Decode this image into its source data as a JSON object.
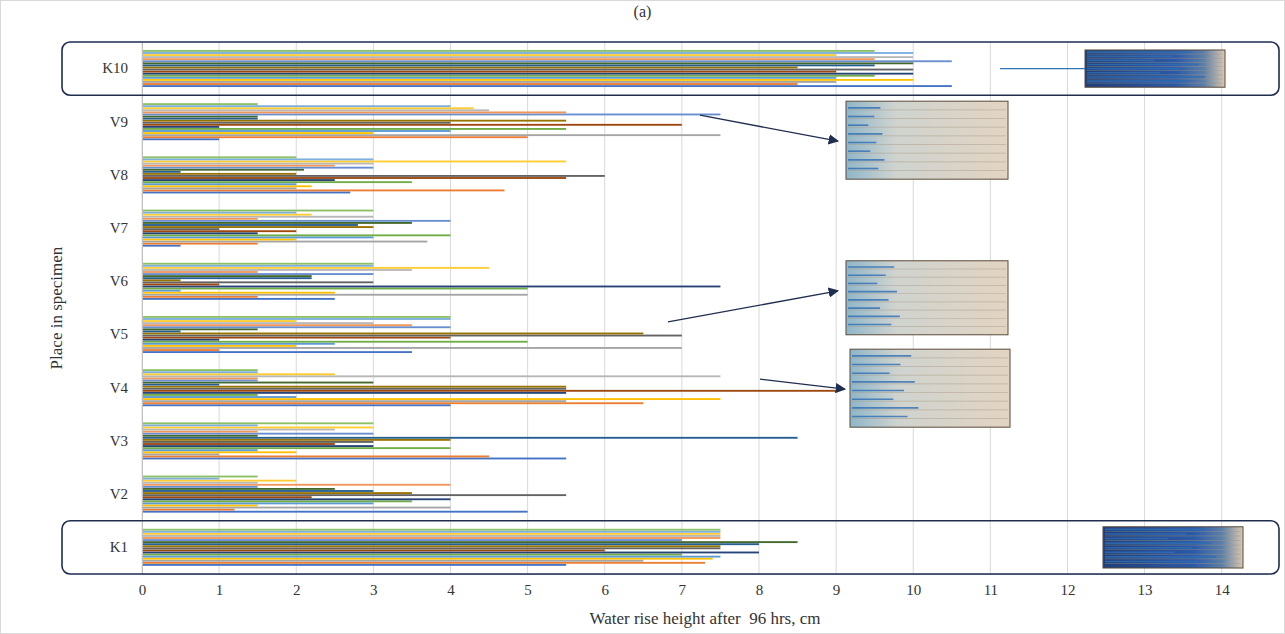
{
  "chart_data": {
    "type": "bar",
    "orientation": "horizontal",
    "title": "(a)",
    "xlabel": "Water rise height after  96 hrs, cm",
    "ylabel": "Place in specimen",
    "categories": [
      "K1",
      "V2",
      "V3",
      "V4",
      "V5",
      "V6",
      "V7",
      "V8",
      "V9",
      "K10"
    ],
    "xlim": [
      0,
      14.6
    ],
    "xticks": [
      0,
      1,
      2,
      3,
      4,
      5,
      6,
      7,
      8,
      9,
      10,
      11,
      12,
      13,
      14
    ],
    "grid": true,
    "series": [
      {
        "color": "#4472c4",
        "values": [
          5.5,
          5,
          5.5,
          4,
          3.5,
          2.5,
          0.5,
          2.7,
          1,
          10.5
        ]
      },
      {
        "color": "#ed7d31",
        "values": [
          7.3,
          1.2,
          4.5,
          6.5,
          1,
          1.5,
          1.5,
          4.7,
          5,
          8.5
        ]
      },
      {
        "color": "#a5a5a5",
        "values": [
          6.5,
          4,
          1,
          5.5,
          7,
          5,
          3.7,
          2,
          7.5,
          9
        ]
      },
      {
        "color": "#ffc000",
        "values": [
          7.4,
          1.5,
          2,
          7.5,
          2,
          2.5,
          2,
          2.2,
          3,
          10
        ]
      },
      {
        "color": "#5b9bd5",
        "values": [
          7.5,
          3,
          1.5,
          2,
          2.5,
          0.5,
          3,
          2,
          4,
          9
        ]
      },
      {
        "color": "#70ad47",
        "values": [
          7,
          3.5,
          4,
          1.5,
          5,
          5,
          4,
          3.5,
          5.5,
          9.5
        ]
      },
      {
        "color": "#264478",
        "values": [
          8,
          4,
          3,
          5.5,
          1,
          7.5,
          1.5,
          2.5,
          1,
          10
        ]
      },
      {
        "color": "#9e480e",
        "values": [
          6,
          2.2,
          2.5,
          9,
          4,
          1,
          2,
          5.5,
          7,
          9
        ]
      },
      {
        "color": "#636363",
        "values": [
          7.5,
          5.5,
          3,
          5.5,
          7,
          3,
          1,
          6,
          4,
          10
        ]
      },
      {
        "color": "#997300",
        "values": [
          7.5,
          3.5,
          4,
          5.5,
          6.5,
          0.5,
          3,
          2,
          5.5,
          8.5
        ]
      },
      {
        "color": "#255e91",
        "values": [
          8,
          3,
          8.5,
          1,
          0.5,
          2.2,
          2.8,
          0.5,
          1.5,
          9.5
        ]
      },
      {
        "color": "#43682b",
        "values": [
          8.5,
          2.5,
          1.5,
          3,
          1.5,
          2.2,
          3.5,
          2.1,
          1.5,
          10
        ]
      },
      {
        "color": "#698ed0",
        "values": [
          7,
          1.5,
          3,
          1.5,
          4,
          3,
          4,
          3,
          7.5,
          10.5
        ]
      },
      {
        "color": "#f1975a",
        "values": [
          7.5,
          4,
          1.5,
          1.5,
          3.5,
          1.5,
          1.5,
          2.5,
          5.5,
          9.5
        ]
      },
      {
        "color": "#b7b7b7",
        "values": [
          7.5,
          1.5,
          2.5,
          7.5,
          3,
          3.5,
          3,
          3,
          4.5,
          10
        ]
      },
      {
        "color": "#ffcd33",
        "values": [
          7.5,
          2,
          3,
          2.5,
          2,
          4.5,
          2.2,
          5.5,
          4.3,
          9
        ]
      },
      {
        "color": "#7cafdd",
        "values": [
          7.5,
          1,
          1.5,
          1.5,
          4,
          3,
          2,
          3,
          4,
          10
        ]
      },
      {
        "color": "#8cc168",
        "values": [
          7.5,
          1.5,
          3,
          1.5,
          4,
          3,
          3,
          2,
          1.5,
          9.5
        ]
      }
    ]
  }
}
